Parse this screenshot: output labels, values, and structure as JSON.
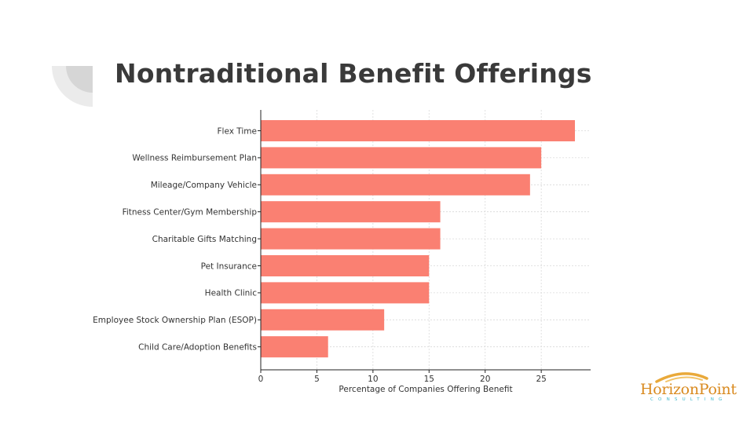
{
  "slide": {
    "title": "Nontraditional Benefit Offerings"
  },
  "logo": {
    "name": "HorizonPoint",
    "tagline": "CONSULTING",
    "color": "#d98a1f",
    "tagline_color": "#3fb5c9"
  },
  "colors": {
    "bar": "#fa8072",
    "title": "#3a3a3a",
    "decoration": "#e6e6e6",
    "grid": "#d9d9d9"
  },
  "chart_data": {
    "type": "bar",
    "orientation": "horizontal",
    "categories": [
      "Flex Time",
      "Wellness Reimbursement Plan",
      "Mileage/Company Vehicle",
      "Fitness Center/Gym Membership",
      "Charitable Gifts Matching",
      "Pet Insurance",
      "Health Clinic",
      "Employee Stock Ownership Plan (ESOP)",
      "Child Care/Adoption Benefits"
    ],
    "values": [
      28,
      25,
      24,
      16,
      16,
      15,
      15,
      11,
      6
    ],
    "title": "",
    "xlabel": "Percentage of Companies Offering Benefit",
    "ylabel": "",
    "xlim": [
      0,
      29.4
    ],
    "xticks": [
      0,
      5,
      10,
      15,
      20,
      25
    ],
    "grid": true,
    "legend": "none"
  }
}
